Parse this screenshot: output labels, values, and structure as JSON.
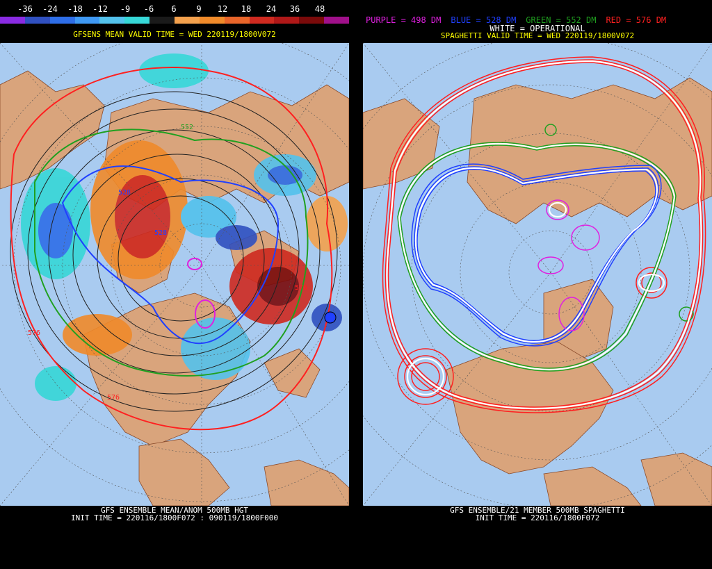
{
  "left_panel": {
    "scale": {
      "ticks": [
        "-36",
        "-24",
        "-18",
        "-12",
        "-9",
        "-6",
        "6",
        "9",
        "12",
        "18",
        "24",
        "36",
        "48"
      ],
      "colors": [
        "#8a2be2",
        "#3050c0",
        "#2e6ee8",
        "#3f99f4",
        "#53c2ec",
        "#36d7d7",
        "#1a1a1a",
        "#f4a14d",
        "#f08a2a",
        "#e8652a",
        "#cf2a20",
        "#b01818",
        "#7a0a0a",
        "#a0108a"
      ]
    },
    "title": "GFSENS MEAN VALID TIME = WED 220119/1800V072",
    "contour_labels": [
      "552",
      "528",
      "528",
      "576",
      "576",
      "576"
    ],
    "footer_line1": "GFS ENSEMBLE MEAN/ANOM 500MB HGT",
    "footer_line2": "INIT TIME = 220116/1800F072 : 090119/1800F000"
  },
  "right_panel": {
    "legend": [
      {
        "text": "PURPLE = 498 DM",
        "color": "#e020e0"
      },
      {
        "text": "BLUE = 528 DM",
        "color": "#2040ff"
      },
      {
        "text": "GREEN = 552 DM",
        "color": "#20a020"
      },
      {
        "text": "RED = 576 DM",
        "color": "#ff2020"
      }
    ],
    "operational": "WHITE = OPERATIONAL",
    "title": "SPAGHETTI VALID TIME = WED 220119/1800V072",
    "footer_line1": "GFS ENSEMBLE/21 MEMBER 500MB SPAGHETTI",
    "footer_line2": "INIT TIME = 220116/1800F072"
  },
  "colors": {
    "ocean": "#a9cbf0",
    "land": "#d9a47c",
    "red_contour": "#ff2020",
    "green_contour": "#20a020",
    "blue_contour": "#2040ff",
    "purple_contour": "#e020e0",
    "white_contour": "#ffffff"
  }
}
